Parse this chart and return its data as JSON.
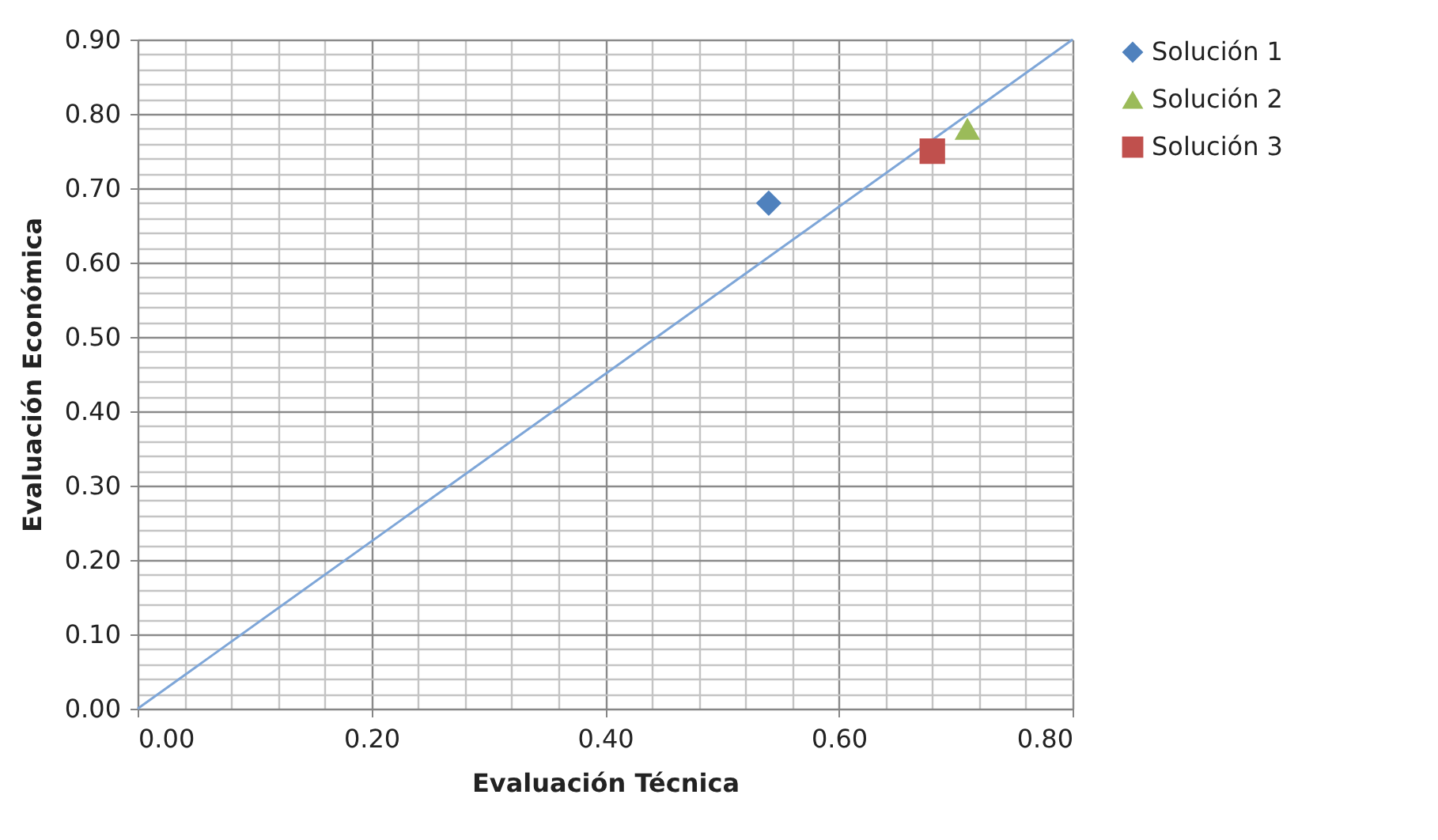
{
  "chart_data": {
    "type": "scatter",
    "xlabel": "Evaluación  Técnica",
    "ylabel": "Evaluación  Económica",
    "xlim": [
      0,
      0.8
    ],
    "ylim": [
      0,
      0.9
    ],
    "xticks": [
      {
        "value": 0,
        "label": "0.00"
      },
      {
        "value": 0.04,
        "label": null
      },
      {
        "value": 0.08,
        "label": null
      },
      {
        "value": 0.12,
        "label": null
      },
      {
        "value": 0.16,
        "label": null
      },
      {
        "value": 0.2,
        "label": "0.20"
      },
      {
        "value": 0.24,
        "label": null
      },
      {
        "value": 0.28,
        "label": null
      },
      {
        "value": 0.32,
        "label": null
      },
      {
        "value": 0.36,
        "label": null
      },
      {
        "value": 0.4,
        "label": "0.40"
      },
      {
        "value": 0.44,
        "label": null
      },
      {
        "value": 0.48,
        "label": null
      },
      {
        "value": 0.52,
        "label": null
      },
      {
        "value": 0.56,
        "label": null
      },
      {
        "value": 0.6,
        "label": "0.60"
      },
      {
        "value": 0.64,
        "label": null
      },
      {
        "value": 0.68,
        "label": null
      },
      {
        "value": 0.72,
        "label": null
      },
      {
        "value": 0.76,
        "label": null
      },
      {
        "value": 0.8,
        "label": "0.80"
      }
    ],
    "yticks": [
      {
        "value": 0,
        "label": "0.00"
      },
      {
        "value": 0.02,
        "label": null
      },
      {
        "value": 0.04,
        "label": null
      },
      {
        "value": 0.06,
        "label": null
      },
      {
        "value": 0.08,
        "label": null
      },
      {
        "value": 0.1,
        "label": "0.10"
      },
      {
        "value": 0.12,
        "label": null
      },
      {
        "value": 0.14,
        "label": null
      },
      {
        "value": 0.16,
        "label": null
      },
      {
        "value": 0.18,
        "label": null
      },
      {
        "value": 0.2,
        "label": "0.20"
      },
      {
        "value": 0.22,
        "label": null
      },
      {
        "value": 0.24,
        "label": null
      },
      {
        "value": 0.26,
        "label": null
      },
      {
        "value": 0.28,
        "label": null
      },
      {
        "value": 0.3,
        "label": "0.30"
      },
      {
        "value": 0.32,
        "label": null
      },
      {
        "value": 0.34,
        "label": null
      },
      {
        "value": 0.36,
        "label": null
      },
      {
        "value": 0.38,
        "label": null
      },
      {
        "value": 0.4,
        "label": "0.40"
      },
      {
        "value": 0.42,
        "label": null
      },
      {
        "value": 0.44,
        "label": null
      },
      {
        "value": 0.46,
        "label": null
      },
      {
        "value": 0.48,
        "label": null
      },
      {
        "value": 0.5,
        "label": "0.50"
      },
      {
        "value": 0.52,
        "label": null
      },
      {
        "value": 0.54,
        "label": null
      },
      {
        "value": 0.56,
        "label": null
      },
      {
        "value": 0.58,
        "label": null
      },
      {
        "value": 0.6,
        "label": "0.60"
      },
      {
        "value": 0.62,
        "label": null
      },
      {
        "value": 0.64,
        "label": null
      },
      {
        "value": 0.66,
        "label": null
      },
      {
        "value": 0.68,
        "label": null
      },
      {
        "value": 0.7,
        "label": "0.70"
      },
      {
        "value": 0.72,
        "label": null
      },
      {
        "value": 0.74,
        "label": null
      },
      {
        "value": 0.76,
        "label": null
      },
      {
        "value": 0.78,
        "label": null
      },
      {
        "value": 0.8,
        "label": "0.80"
      },
      {
        "value": 0.82,
        "label": null
      },
      {
        "value": 0.84,
        "label": null
      },
      {
        "value": 0.86,
        "label": null
      },
      {
        "value": 0.88,
        "label": null
      },
      {
        "value": 0.9,
        "label": "0.90"
      }
    ],
    "grid": true,
    "legend": "right",
    "series": [
      {
        "type": "line",
        "color": "#7ea6d8",
        "x": [
          0,
          0.8
        ],
        "values": [
          0,
          0.9
        ]
      },
      {
        "name": "Solución 1",
        "color": "#4f81bd",
        "marker": "diamond",
        "x": [
          0.54
        ],
        "values": [
          0.68
        ]
      },
      {
        "name": "Solución 2",
        "color": "#9bbb59",
        "marker": "triangle",
        "x": [
          0.71
        ],
        "values": [
          0.78
        ]
      },
      {
        "name": "Solución 3",
        "color": "#c0504d",
        "marker": "square",
        "x": [
          0.68
        ],
        "values": [
          0.75
        ]
      }
    ]
  }
}
